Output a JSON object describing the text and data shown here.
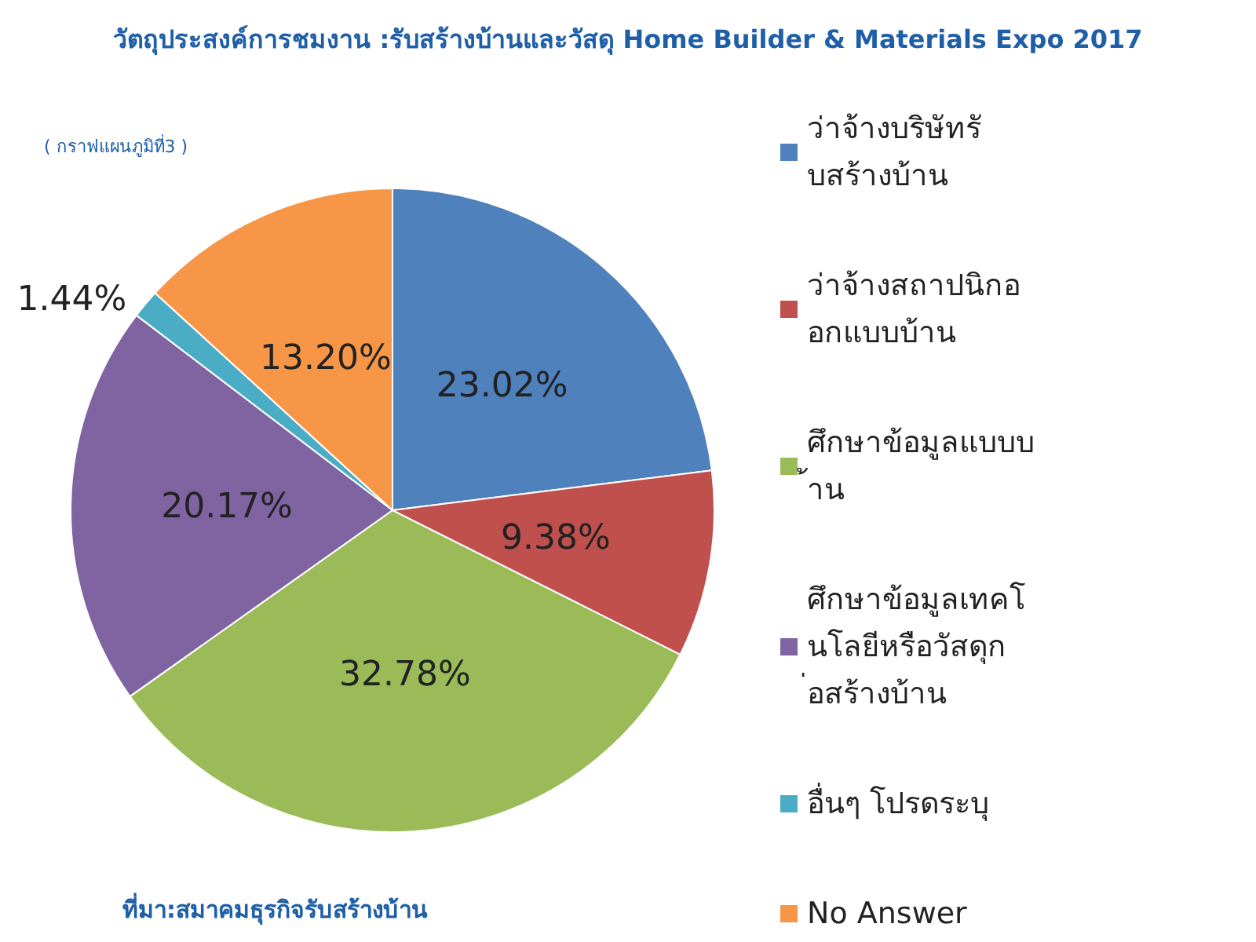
{
  "chart_data": {
    "type": "pie",
    "title": "วัตถุประสงค์การชมงาน :รับสร้างบ้านและวัสดุ Home Builder & Materials Expo 2017",
    "categories": [
      "ว่าจ้างบริษัทรับสร้างบ้าน",
      "ว่าจ้างสถาปนิกออกแบบบ้าน",
      "ศึกษาข้อมูลแบบบ้าน",
      "ศึกษาข้อมูลเทคโนโลยีหรือวัสดุก่อสร้างบ้าน",
      "อื่นๆ โปรดระบุ",
      "No Answer"
    ],
    "values": [
      23.02,
      9.38,
      32.78,
      20.17,
      1.44,
      13.2
    ],
    "value_labels": [
      "23.02%",
      "9.38%",
      "32.78%",
      "20.17%",
      "1.44%",
      "13.20%"
    ],
    "colors": [
      "#4f81bd",
      "#c0504d",
      "#9bbb59",
      "#8064a2",
      "#4bacc6",
      "#f79646"
    ],
    "legend": "right",
    "annotations": [
      "( กราฟแผนภูมิที่3 )",
      "ที่มา:สมาคมธุรกิจรับสร้างบ้าน"
    ]
  }
}
